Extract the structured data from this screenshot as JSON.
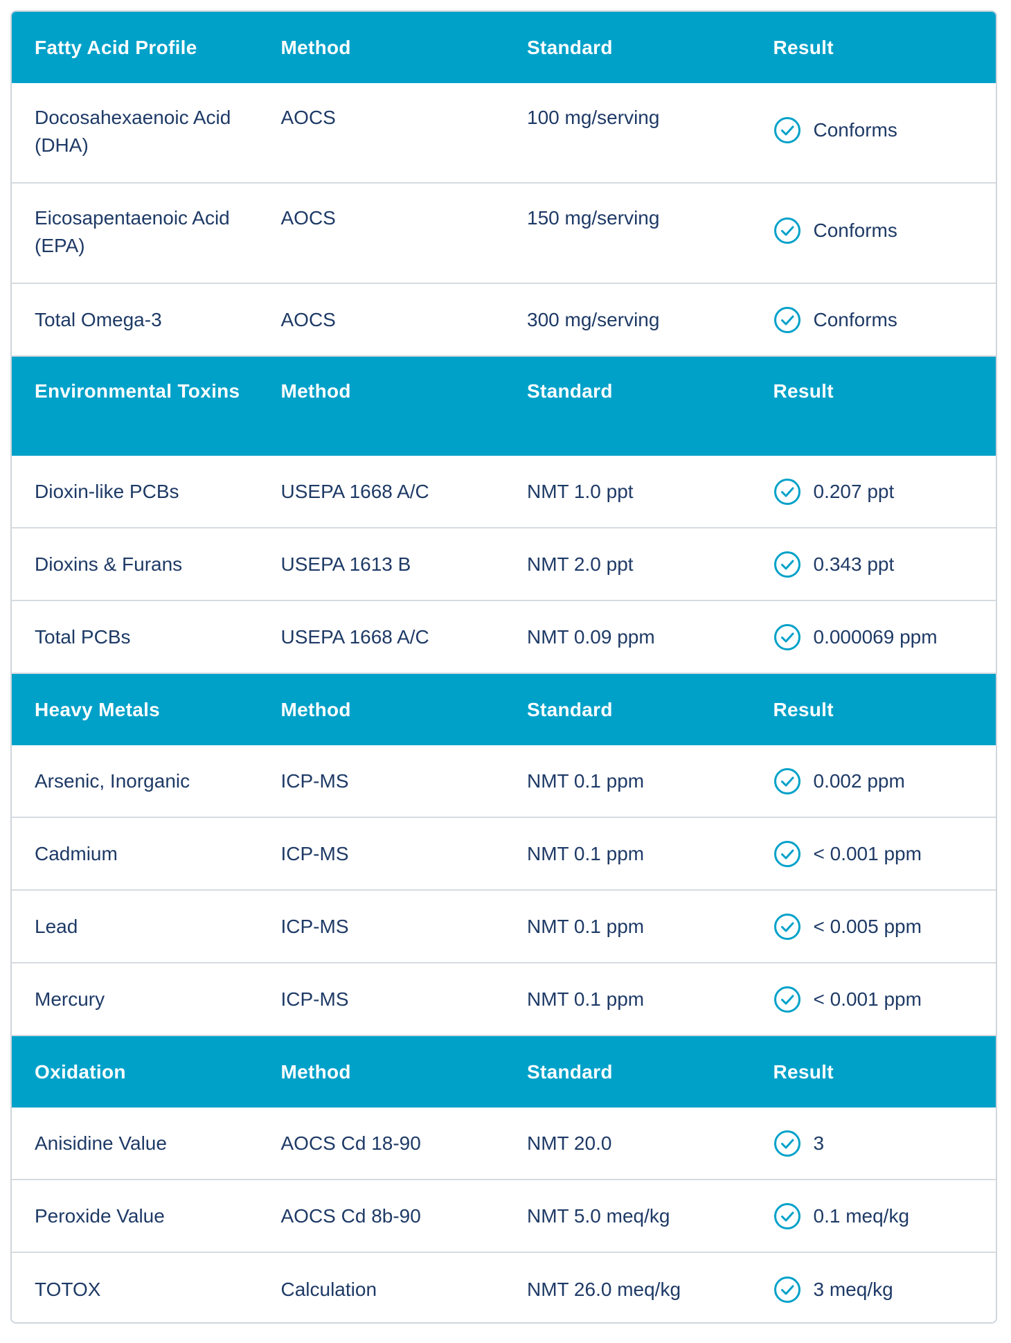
{
  "sections": [
    {
      "header": {
        "col1": "Fatty Acid Profile",
        "col2": "Method",
        "col3": "Standard",
        "col4": "Result"
      },
      "rows": [
        {
          "name": "Docosahexaenoic Acid (DHA)",
          "method": "AOCS",
          "standard": "100 mg/serving",
          "result": "Conforms"
        },
        {
          "name": "Eicosapentaenoic Acid (EPA)",
          "method": "AOCS",
          "standard": "150 mg/serving",
          "result": "Conforms"
        },
        {
          "name": "Total Omega-3",
          "method": "AOCS",
          "standard": "300 mg/serving",
          "result": "Conforms"
        }
      ]
    },
    {
      "header": {
        "col1": "Environmental Toxins",
        "col2": "Method",
        "col3": "Standard",
        "col4": "Result"
      },
      "rows": [
        {
          "name": "Dioxin-like PCBs",
          "method": "USEPA 1668 A/C",
          "standard": "NMT 1.0 ppt",
          "result": "0.207 ppt"
        },
        {
          "name": "Dioxins & Furans",
          "method": "USEPA 1613 B",
          "standard": "NMT 2.0 ppt",
          "result": "0.343 ppt"
        },
        {
          "name": "Total PCBs",
          "method": "USEPA 1668 A/C",
          "standard": "NMT 0.09 ppm",
          "result": "0.000069 ppm"
        }
      ]
    },
    {
      "header": {
        "col1": "Heavy Metals",
        "col2": "Method",
        "col3": "Standard",
        "col4": "Result"
      },
      "rows": [
        {
          "name": "Arsenic, Inorganic",
          "method": "ICP-MS",
          "standard": "NMT 0.1 ppm",
          "result": "0.002 ppm"
        },
        {
          "name": "Cadmium",
          "method": "ICP-MS",
          "standard": "NMT 0.1 ppm",
          "result": "< 0.001 ppm"
        },
        {
          "name": "Lead",
          "method": "ICP-MS",
          "standard": "NMT 0.1 ppm",
          "result": "< 0.005 ppm"
        },
        {
          "name": "Mercury",
          "method": "ICP-MS",
          "standard": "NMT 0.1 ppm",
          "result": "< 0.001 ppm"
        }
      ]
    },
    {
      "header": {
        "col1": "Oxidation",
        "col2": "Method",
        "col3": "Standard",
        "col4": "Result"
      },
      "rows": [
        {
          "name": "Anisidine Value",
          "method": "AOCS Cd 18-90",
          "standard": "NMT 20.0",
          "result": "3"
        },
        {
          "name": "Peroxide Value",
          "method": "AOCS Cd 8b-90",
          "standard": "NMT 5.0 meq/kg",
          "result": "0.1 meq/kg"
        },
        {
          "name": "TOTOX",
          "method": "Calculation",
          "standard": "NMT 26.0 meq/kg",
          "result": "3 meq/kg"
        }
      ]
    }
  ],
  "colors": {
    "header_bg": "#00a1c9",
    "text": "#1e3a66",
    "check": "#00a1c9",
    "divider": "#d5dbe0"
  },
  "icons": {
    "result": "check-circle-icon"
  }
}
